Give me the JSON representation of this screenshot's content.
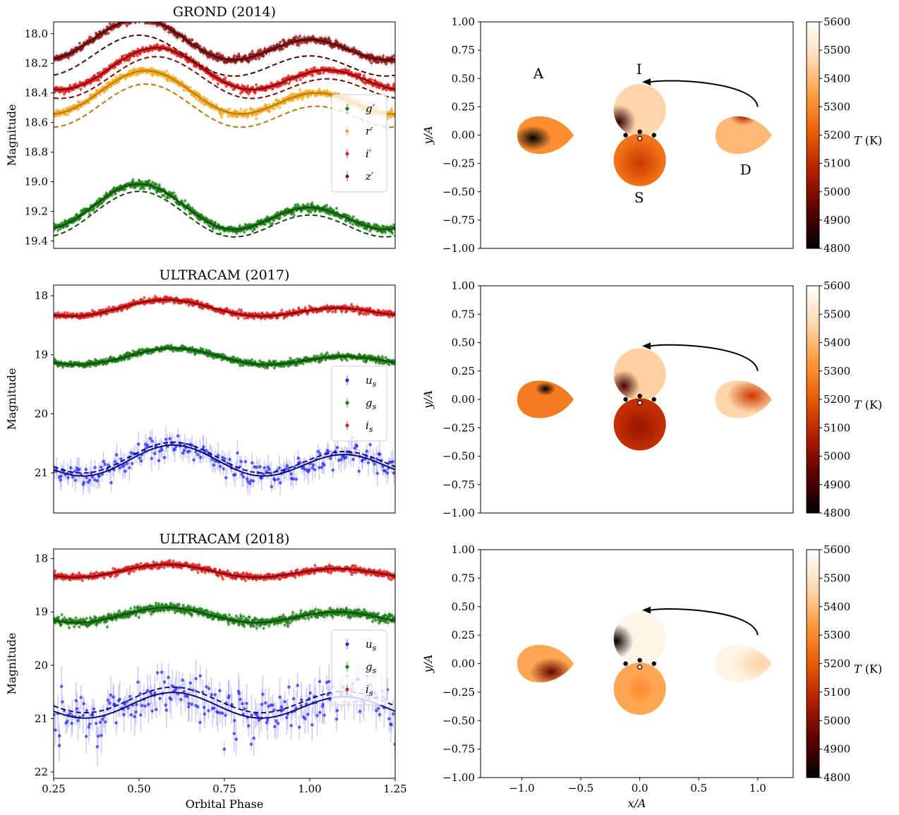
{
  "colors": {
    "g_prime": "#1a7a12",
    "g_dark": "#0a4d05",
    "r_prime": "#f2a81c",
    "r_dark": "#b8780a",
    "i_prime": "#dd1c1c",
    "i_dark": "#7a0a0a",
    "z_prime": "#8b1515",
    "z_dark": "#4a0505",
    "u_s": "#2222ee",
    "u_dark": "#0a0a7a",
    "colormap": [
      "#000000",
      "#5a0000",
      "#b01c00",
      "#e85a00",
      "#ff9a3c",
      "#ffd9b0",
      "#ffffff"
    ]
  },
  "labels": {
    "ylabel_mag": "Magnitude",
    "xlabel_phase": "Orbital Phase",
    "ylabel_map": "y/A",
    "xlabel_map": "x/A",
    "cbar_label": "T (K)",
    "star_A": "A",
    "star_I": "I",
    "star_S": "S",
    "star_D": "D"
  },
  "chart_data": [
    {
      "type": "scatter",
      "title": "GROND (2014)",
      "xlabel": "",
      "ylabel": "Magnitude",
      "xlim": [
        0.25,
        1.25
      ],
      "ylim": [
        19.45,
        17.92
      ],
      "yticks": [
        18.0,
        18.2,
        18.4,
        18.6,
        18.8,
        19.0,
        19.2,
        19.4
      ],
      "ytick_labels": [
        "18.0",
        "18.2",
        "18.4",
        "18.6",
        "18.8",
        "19.0",
        "19.2",
        "19.4"
      ],
      "legend": {
        "position": "right",
        "entries": [
          "g′",
          "r′",
          "i′",
          "z′"
        ]
      },
      "series": [
        {
          "name": "g′",
          "model": {
            "mean": 19.205,
            "a1": 0.11,
            "phi1": 0.5,
            "a2": 0.08,
            "ph2": 0.5
          },
          "dashed_offset": 0.05,
          "scatter": 0.012,
          "error": 0.015
        },
        {
          "name": "r′",
          "model": {
            "mean": 18.43,
            "a1": 0.105,
            "phi1": 0.52,
            "a2": 0.075,
            "ph2": 0.52
          },
          "dashed_offset": 0.09,
          "scatter": 0.012,
          "error": 0.015
        },
        {
          "name": "i′",
          "model": {
            "mean": 18.27,
            "a1": 0.1,
            "phi1": 0.55,
            "a2": 0.075,
            "ph2": 0.55
          },
          "dashed_offset": 0.06,
          "scatter": 0.011,
          "error": 0.015
        },
        {
          "name": "z′",
          "model": {
            "mean": 18.07,
            "a1": 0.1,
            "phi1": 0.5,
            "a2": 0.07,
            "ph2": 0.5
          },
          "dashed_offset": 0.11,
          "scatter": 0.012,
          "error": 0.018
        }
      ]
    },
    {
      "type": "scatter",
      "title": "ULTRACAM (2017)",
      "xlabel": "",
      "ylabel": "Magnitude",
      "xlim": [
        0.25,
        1.25
      ],
      "ylim": [
        21.68,
        17.82
      ],
      "yticks": [
        18,
        19,
        20,
        21
      ],
      "ytick_labels": [
        "18",
        "19",
        "20",
        "21"
      ],
      "legend": {
        "position": "right",
        "entries": [
          "u_s",
          "g_s",
          "i_s"
        ]
      },
      "series": [
        {
          "name": "u_s",
          "model": {
            "mean": 20.83,
            "a1": 0.22,
            "phi1": 0.6,
            "a2": 0.08,
            "ph2": 0.6
          },
          "dashed_offset": -0.05,
          "scatter": 0.1,
          "error": 0.15
        },
        {
          "name": "g_s",
          "model": {
            "mean": 19.06,
            "a1": 0.1,
            "phi1": 0.6,
            "a2": 0.07,
            "ph2": 0.6
          },
          "dashed_offset": 0.0,
          "scatter": 0.025,
          "error": 0.035
        },
        {
          "name": "i_s",
          "model": {
            "mean": 18.24,
            "a1": 0.1,
            "phi1": 0.58,
            "a2": 0.07,
            "ph2": 0.58
          },
          "dashed_offset": 0.0,
          "scatter": 0.025,
          "error": 0.035
        }
      ]
    },
    {
      "type": "scatter",
      "title": "ULTRACAM (2018)",
      "xlabel": "Orbital Phase",
      "ylabel": "Magnitude",
      "xlim": [
        0.25,
        1.25
      ],
      "ylim": [
        22.12,
        17.82
      ],
      "yticks": [
        18,
        19,
        20,
        21,
        22
      ],
      "ytick_labels": [
        "18",
        "19",
        "20",
        "21",
        "22"
      ],
      "xticks": [
        0.25,
        0.5,
        0.75,
        1.0,
        1.25
      ],
      "xtick_labels": [
        "0.25",
        "0.50",
        "0.75",
        "1.00",
        "1.25"
      ],
      "legend": {
        "position": "right",
        "entries": [
          "u_s",
          "g_s",
          "i_s"
        ]
      },
      "series": [
        {
          "name": "u_s",
          "model": {
            "mean": 20.77,
            "a1": 0.22,
            "phi1": 0.6,
            "a2": 0.04,
            "ph2": 0.6
          },
          "dashed_offset": -0.1,
          "scatter": 0.22,
          "error": 0.25
        },
        {
          "name": "g_s",
          "model": {
            "mean": 19.08,
            "a1": 0.12,
            "phi1": 0.58,
            "a2": 0.04,
            "ph2": 0.58
          },
          "dashed_offset": 0.0,
          "scatter": 0.04,
          "error": 0.05
        },
        {
          "name": "i_s",
          "model": {
            "mean": 18.25,
            "a1": 0.1,
            "phi1": 0.58,
            "a2": 0.04,
            "ph2": 0.58
          },
          "dashed_offset": 0.0,
          "scatter": 0.03,
          "error": 0.04
        }
      ]
    },
    {
      "type": "heatmap",
      "title": "",
      "xlabel": "",
      "ylabel": "y/A",
      "xlim": [
        -1.35,
        1.3
      ],
      "ylim": [
        -1.0,
        1.0
      ],
      "yticks": [
        -1.0,
        -0.75,
        -0.5,
        -0.25,
        0.0,
        0.25,
        0.5,
        0.75,
        1.0
      ],
      "ytick_labels": [
        "−1.00",
        "−0.75",
        "−0.50",
        "−0.25",
        "0.00",
        "0.25",
        "0.50",
        "0.75",
        "1.00"
      ],
      "colorbar": {
        "label": "T (K)",
        "min": 4800,
        "max": 5600,
        "ticks": [
          4800,
          4900,
          5000,
          5100,
          5200,
          5300,
          5400,
          5500,
          5600
        ]
      },
      "stars": [
        {
          "view": "A",
          "x": -0.8,
          "y": 0.0,
          "base_temp": 5310,
          "spot": {
            "dx": 0.28,
            "dy": 0.58,
            "temp": 4780,
            "size": 0.33
          }
        },
        {
          "view": "I",
          "x": 0.0,
          "y": 0.22,
          "base_temp": 5460,
          "spot": {
            "dx": 0.1,
            "dy": 0.72,
            "temp": 4870,
            "size": 0.33
          }
        },
        {
          "view": "S",
          "x": 0.0,
          "y": -0.22,
          "base_temp": 5250,
          "spot": {
            "dx": 0.5,
            "dy": 0.55,
            "temp": 5130,
            "size": 0.45
          }
        },
        {
          "view": "D",
          "x": 0.88,
          "y": 0.0,
          "base_temp": 5400,
          "spot": {
            "dx": 0.5,
            "dy": 0.0,
            "temp": 5060,
            "size": 0.25
          }
        }
      ]
    },
    {
      "type": "heatmap",
      "title": "",
      "xlabel": "",
      "ylabel": "y/A",
      "xlim": [
        -1.35,
        1.3
      ],
      "ylim": [
        -1.0,
        1.0
      ],
      "yticks": [
        -1.0,
        -0.75,
        -0.5,
        -0.25,
        0.0,
        0.25,
        0.5,
        0.75,
        1.0
      ],
      "ytick_labels": [
        "−1.00",
        "−0.75",
        "−0.50",
        "−0.25",
        "0.00",
        "0.25",
        "0.50",
        "0.75",
        "1.00"
      ],
      "colorbar": {
        "label": "T (K)",
        "min": 4800,
        "max": 5600,
        "ticks": [
          4800,
          4900,
          5000,
          5100,
          5200,
          5300,
          5400,
          5500,
          5600
        ]
      },
      "stars": [
        {
          "view": "A",
          "x": -0.8,
          "y": 0.0,
          "base_temp": 5270,
          "spot": {
            "dx": 0.5,
            "dy": 0.22,
            "temp": 4780,
            "size": 0.18
          }
        },
        {
          "view": "I",
          "x": 0.0,
          "y": 0.22,
          "base_temp": 5450,
          "spot": {
            "dx": 0.2,
            "dy": 0.72,
            "temp": 4900,
            "size": 0.3
          }
        },
        {
          "view": "S",
          "x": 0.0,
          "y": -0.22,
          "base_temp": 5110,
          "spot": {
            "dx": 0.5,
            "dy": 0.55,
            "temp": 5030,
            "size": 0.45
          }
        },
        {
          "view": "D",
          "x": 0.88,
          "y": 0.0,
          "base_temp": 5460,
          "spot": {
            "dx": 0.65,
            "dy": 0.4,
            "temp": 5130,
            "size": 0.45
          }
        }
      ]
    },
    {
      "type": "heatmap",
      "title": "",
      "xlabel": "x/A",
      "ylabel": "y/A",
      "xlim": [
        -1.35,
        1.3
      ],
      "ylim": [
        -1.0,
        1.0
      ],
      "xticks": [
        -1.0,
        -0.5,
        0.0,
        0.5,
        1.0
      ],
      "xtick_labels": [
        "−1.0",
        "−0.5",
        "0.0",
        "0.5",
        "1.0"
      ],
      "yticks": [
        -1.0,
        -0.75,
        -0.5,
        -0.25,
        0.0,
        0.25,
        0.5,
        0.75,
        1.0
      ],
      "ytick_labels": [
        "−1.00",
        "−0.75",
        "−0.50",
        "−0.25",
        "0.00",
        "0.25",
        "0.50",
        "0.75",
        "1.00"
      ],
      "colorbar": {
        "label": "T (K)",
        "min": 4800,
        "max": 5600,
        "ticks": [
          4800,
          4900,
          5000,
          5100,
          5200,
          5300,
          5400,
          5500,
          5600
        ]
      },
      "stars": [
        {
          "view": "A",
          "x": -0.8,
          "y": 0.0,
          "base_temp": 5360,
          "spot": {
            "dx": 0.6,
            "dy": 0.72,
            "temp": 4950,
            "size": 0.38
          }
        },
        {
          "view": "I",
          "x": 0.0,
          "y": 0.22,
          "base_temp": 5560,
          "spot": {
            "dx": 0.05,
            "dy": 0.55,
            "temp": 4800,
            "size": 0.33
          }
        },
        {
          "view": "S",
          "x": 0.0,
          "y": -0.22,
          "base_temp": 5360,
          "spot": {
            "dx": 0.5,
            "dy": 0.5,
            "temp": 5300,
            "size": 0.3
          }
        },
        {
          "view": "D",
          "x": 0.88,
          "y": 0.0,
          "base_temp": 5560,
          "spot": {
            "dx": 0.8,
            "dy": 0.5,
            "temp": 5450,
            "size": 0.5
          }
        }
      ]
    }
  ]
}
